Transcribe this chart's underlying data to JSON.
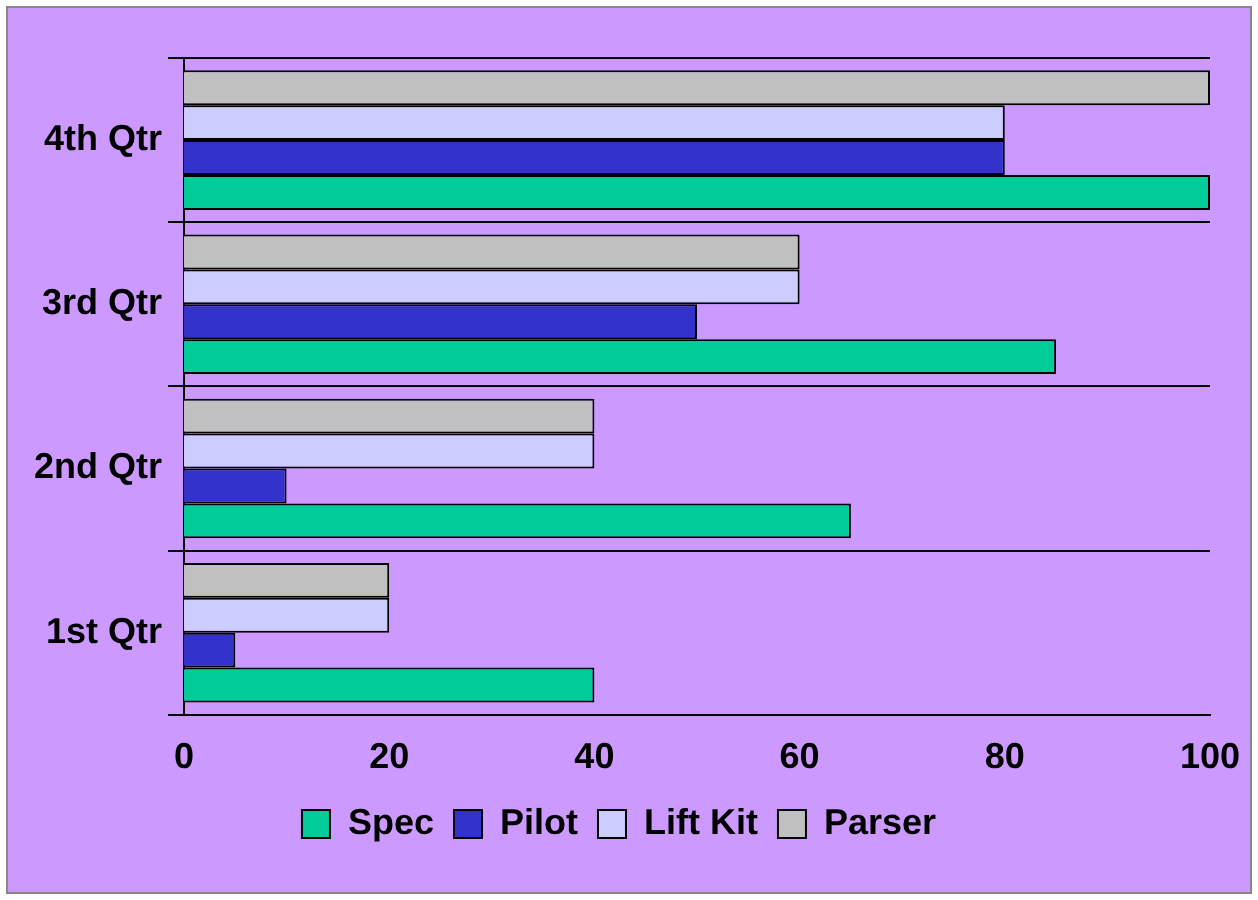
{
  "chart_data": {
    "type": "bar",
    "orientation": "horizontal",
    "categories": [
      "4th Qtr",
      "3rd Qtr",
      "2nd Qtr",
      "1st Qtr"
    ],
    "series": [
      {
        "name": "Spec",
        "color": "#00cc99",
        "values": [
          100,
          85,
          65,
          40
        ]
      },
      {
        "name": "Pilot",
        "color": "#3333cc",
        "values": [
          80,
          50,
          10,
          5
        ]
      },
      {
        "name": "Lift Kit",
        "color": "#ccccff",
        "values": [
          80,
          60,
          40,
          20
        ]
      },
      {
        "name": "Parser",
        "color": "#c0c0c0",
        "values": [
          100,
          60,
          40,
          20
        ]
      }
    ],
    "xlim": [
      0,
      100
    ],
    "xticks": [
      0,
      20,
      40,
      60,
      80,
      100
    ],
    "grid": "y",
    "legend": "bottom"
  }
}
